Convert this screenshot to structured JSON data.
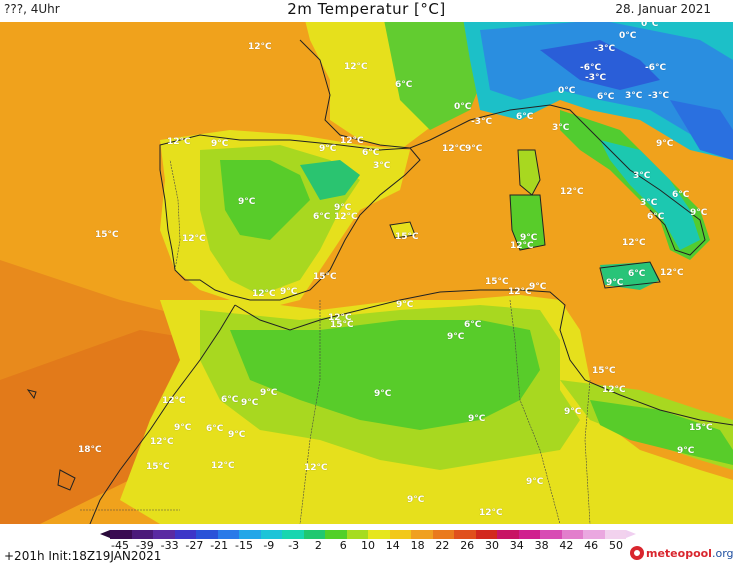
{
  "header": {
    "left_text": "???, 4Uhr",
    "title": "2m Temperatur [°C]",
    "date": "28. Januar 2021"
  },
  "map": {
    "region": "Western Mediterranean",
    "temperature_labels": [
      {
        "t": "12°C"
      },
      {
        "t": "12°C"
      },
      {
        "t": "6°C"
      },
      {
        "t": "0°C"
      },
      {
        "t": "0°C"
      },
      {
        "t": "-3°C"
      },
      {
        "t": "-6°C"
      },
      {
        "t": "-3°C"
      },
      {
        "t": "-6°C"
      },
      {
        "t": "0°C"
      },
      {
        "t": "6°C"
      },
      {
        "t": "3°C"
      },
      {
        "t": "-3°C"
      },
      {
        "t": "0°C"
      },
      {
        "t": "-3°C"
      },
      {
        "t": "6°C"
      },
      {
        "t": "3°C"
      },
      {
        "t": "12°C"
      },
      {
        "t": "9°C"
      },
      {
        "t": "12°C"
      },
      {
        "t": "9°C"
      },
      {
        "t": "6°C"
      },
      {
        "t": "3°C"
      },
      {
        "t": "12°C"
      },
      {
        "t": "9°C"
      },
      {
        "t": "9°C"
      },
      {
        "t": "15°C"
      },
      {
        "t": "12°C"
      },
      {
        "t": "9°C"
      },
      {
        "t": "6°C"
      },
      {
        "t": "12°C"
      },
      {
        "t": "9°C"
      },
      {
        "t": "15°C"
      },
      {
        "t": "12°C"
      },
      {
        "t": "9°C"
      },
      {
        "t": "12°C"
      },
      {
        "t": "3°C"
      },
      {
        "t": "6°C"
      },
      {
        "t": "3°C"
      },
      {
        "t": "6°C"
      },
      {
        "t": "9°C"
      },
      {
        "t": "12°C"
      },
      {
        "t": "6°C"
      },
      {
        "t": "12°C"
      },
      {
        "t": "9°C"
      },
      {
        "t": "15°C"
      },
      {
        "t": "12°C"
      },
      {
        "t": "9°C"
      },
      {
        "t": "15°C"
      },
      {
        "t": "12°C"
      },
      {
        "t": "9°C"
      },
      {
        "t": "6°C"
      },
      {
        "t": "9°C"
      },
      {
        "t": "9°C"
      },
      {
        "t": "6°C"
      },
      {
        "t": "9°C"
      },
      {
        "t": "12°C"
      },
      {
        "t": "9°C"
      },
      {
        "t": "9°C"
      },
      {
        "t": "15°C"
      },
      {
        "t": "12°C"
      },
      {
        "t": "9°C"
      },
      {
        "t": "15°C"
      },
      {
        "t": "9°C"
      },
      {
        "t": "18°C"
      },
      {
        "t": "12°C"
      },
      {
        "t": "6°C"
      },
      {
        "t": "9°C"
      },
      {
        "t": "15°C"
      },
      {
        "t": "12°C"
      },
      {
        "t": "12°C"
      },
      {
        "t": "9°C"
      },
      {
        "t": "12°C"
      },
      {
        "t": "9°C"
      },
      {
        "t": "9°C"
      },
      {
        "t": "15°C"
      },
      {
        "t": "9°C"
      },
      {
        "t": "12°C"
      }
    ]
  },
  "legend": {
    "ticks": [
      "-45",
      "-39",
      "-33",
      "-27",
      "-21",
      "-15",
      "-9",
      "-3",
      "2",
      "6",
      "10",
      "14",
      "18",
      "22",
      "26",
      "30",
      "34",
      "38",
      "42",
      "46",
      "50"
    ],
    "colors": [
      "#3a0b52",
      "#4b1a7a",
      "#5a2aa2",
      "#3d36c8",
      "#2a52d8",
      "#2a7ae8",
      "#22a6e8",
      "#1cc4d8",
      "#18d6b0",
      "#20c870",
      "#52d028",
      "#a6dc20",
      "#e6e61c",
      "#f2c81a",
      "#f0a020",
      "#ea7a1c",
      "#e0501c",
      "#d2281e",
      "#c81464",
      "#d0208e",
      "#d84cb4",
      "#e27ecc",
      "#eaa8e0",
      "#f2d2ee"
    ]
  },
  "footer": {
    "init_text": "+201h  Init:18Z19JAN2021",
    "logo_name": "meteopool",
    "logo_tld": ".org"
  }
}
